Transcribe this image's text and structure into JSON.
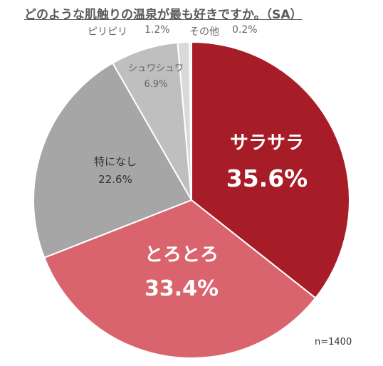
{
  "chart_data": {
    "type": "pie",
    "title": "どのような肌触りの温泉が最も好きですか。（SA）",
    "categories": [
      "サラサラ",
      "とろとろ",
      "特になし",
      "シュワシュワ",
      "ピリピリ",
      "その他"
    ],
    "values": [
      35.6,
      33.4,
      22.6,
      6.9,
      1.2,
      0.2
    ],
    "value_labels": [
      "35.6%",
      "33.4%",
      "22.6%",
      "6.9%",
      "1.2%",
      "0.2%"
    ],
    "colors": [
      "#a61c27",
      "#d9646e",
      "#a6a6a6",
      "#bfbfbf",
      "#d9d9d9",
      "#e7e7e7"
    ],
    "start_angle": "12 o'clock",
    "direction": "clockwise",
    "note": "n=1400"
  }
}
